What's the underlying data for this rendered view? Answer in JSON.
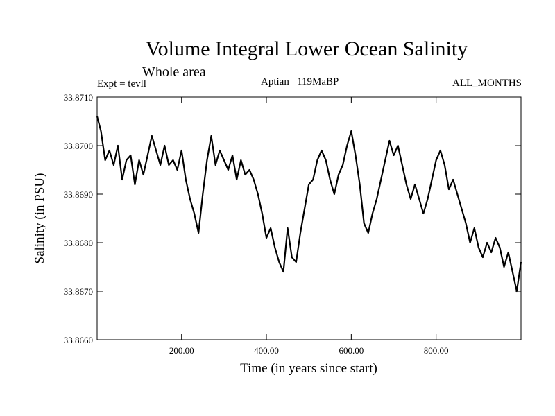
{
  "chart_data": {
    "type": "line",
    "title": "Volume Integral Lower Ocean Salinity",
    "subtitle": "Whole area",
    "annotations": {
      "experiment": "Expt = tevll",
      "period": "Aptian   119MaBP",
      "months": "ALL_MONTHS"
    },
    "xlabel": "Time (in years since start)",
    "ylabel": "Salinity (in PSU)",
    "xlim": [
      1,
      1000
    ],
    "ylim": [
      33.866,
      33.871
    ],
    "x_ticks": [
      200,
      400,
      600,
      800
    ],
    "x_tick_labels": [
      "200.00",
      "400.00",
      "600.00",
      "800.00"
    ],
    "y_ticks": [
      33.866,
      33.867,
      33.868,
      33.869,
      33.87,
      33.871
    ],
    "y_tick_labels": [
      "33.8660",
      "33.8670",
      "33.8680",
      "33.8690",
      "33.8700",
      "33.8710"
    ],
    "grid": false,
    "series": [
      {
        "name": "salinity",
        "color": "#000000",
        "x": [
          1,
          10,
          20,
          30,
          40,
          50,
          60,
          70,
          80,
          90,
          100,
          110,
          120,
          130,
          140,
          150,
          160,
          170,
          180,
          190,
          200,
          210,
          220,
          230,
          240,
          250,
          260,
          270,
          280,
          290,
          300,
          310,
          320,
          330,
          340,
          350,
          360,
          370,
          380,
          390,
          400,
          410,
          420,
          430,
          440,
          450,
          460,
          470,
          480,
          490,
          500,
          510,
          520,
          530,
          540,
          550,
          560,
          570,
          580,
          590,
          600,
          610,
          620,
          630,
          640,
          650,
          660,
          670,
          680,
          690,
          700,
          710,
          720,
          730,
          740,
          750,
          760,
          770,
          780,
          790,
          800,
          810,
          820,
          830,
          840,
          850,
          860,
          870,
          880,
          890,
          900,
          910,
          920,
          930,
          940,
          950,
          960,
          970,
          980,
          990,
          1000
        ],
        "values": [
          33.8706,
          33.8703,
          33.8697,
          33.8699,
          33.8696,
          33.87,
          33.8693,
          33.8697,
          33.8698,
          33.8692,
          33.8697,
          33.8694,
          33.8698,
          33.8702,
          33.8699,
          33.8696,
          33.87,
          33.8696,
          33.8697,
          33.8695,
          33.8699,
          33.8693,
          33.8689,
          33.8686,
          33.8682,
          33.869,
          33.8697,
          33.8702,
          33.8696,
          33.8699,
          33.8697,
          33.8695,
          33.8698,
          33.8693,
          33.8697,
          33.8694,
          33.8695,
          33.8693,
          33.869,
          33.8686,
          33.8681,
          33.8683,
          33.8679,
          33.8676,
          33.8674,
          33.8683,
          33.8677,
          33.8676,
          33.8682,
          33.8687,
          33.8692,
          33.8693,
          33.8697,
          33.8699,
          33.8697,
          33.8693,
          33.869,
          33.8694,
          33.8696,
          33.87,
          33.8703,
          33.8698,
          33.8692,
          33.8684,
          33.8682,
          33.8686,
          33.8689,
          33.8693,
          33.8697,
          33.8701,
          33.8698,
          33.87,
          33.8696,
          33.8692,
          33.8689,
          33.8692,
          33.8689,
          33.8686,
          33.8689,
          33.8693,
          33.8697,
          33.8699,
          33.8696,
          33.8691,
          33.8693,
          33.869,
          33.8687,
          33.8684,
          33.868,
          33.8683,
          33.8679,
          33.8677,
          33.868,
          33.8678,
          33.8681,
          33.8679,
          33.8675,
          33.8678,
          33.8674,
          33.867,
          33.8676
        ]
      }
    ]
  }
}
